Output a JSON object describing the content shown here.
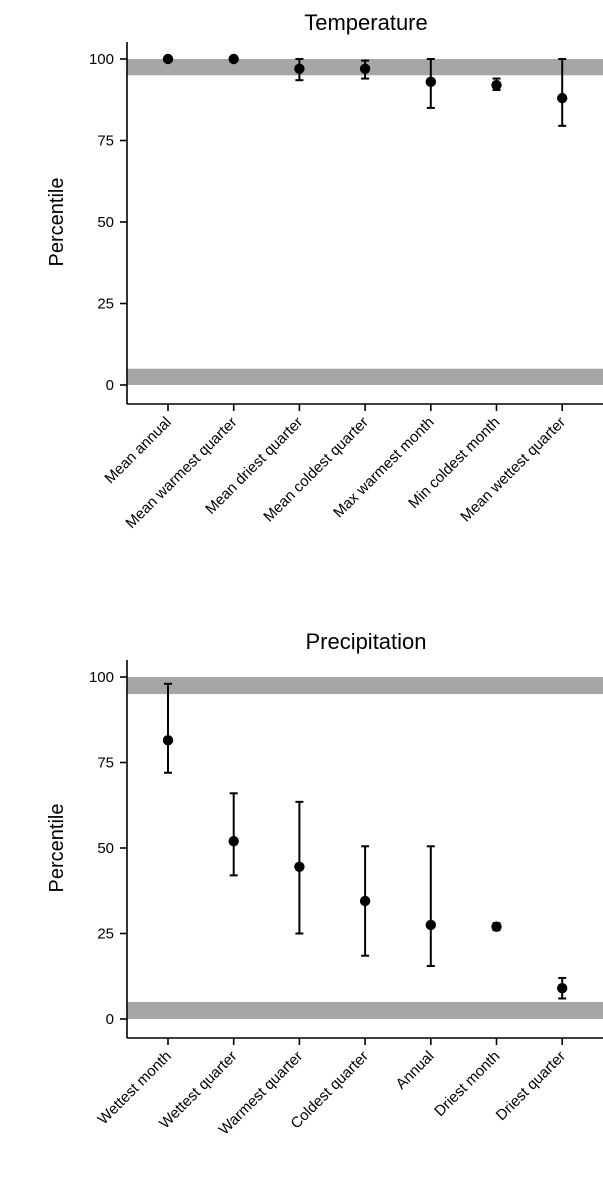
{
  "chart_data": [
    {
      "type": "scatter",
      "title": "Temperature",
      "ylabel": "Percentile",
      "xlabel": "",
      "ylim": [
        -5,
        105
      ],
      "yticks": [
        0,
        25,
        50,
        75,
        100
      ],
      "grid": false,
      "legend": "none",
      "reference_bands": [
        {
          "from": 95,
          "to": 100,
          "color": "#a6a6a6"
        },
        {
          "from": 0,
          "to": 5,
          "color": "#a6a6a6"
        }
      ],
      "categories": [
        "Mean annual",
        "Mean warmest quarter",
        "Mean driest quarter",
        "Mean coldest quarter",
        "Max warmest month",
        "Min coldest month",
        "Mean wettest quarter"
      ],
      "values": [
        100,
        100,
        97,
        97,
        93,
        92,
        88
      ],
      "lower": [
        100,
        100,
        93.5,
        94,
        85,
        90.5,
        79.5
      ],
      "upper": [
        100,
        100,
        100,
        99.5,
        100,
        94,
        100
      ]
    },
    {
      "type": "scatter",
      "title": "Precipitation",
      "ylabel": "Percentile",
      "xlabel": "",
      "ylim": [
        -5,
        105
      ],
      "yticks": [
        0,
        25,
        50,
        75,
        100
      ],
      "grid": false,
      "legend": "none",
      "reference_bands": [
        {
          "from": 95,
          "to": 100,
          "color": "#a6a6a6"
        },
        {
          "from": 0,
          "to": 5,
          "color": "#a6a6a6"
        }
      ],
      "categories": [
        "Wettest month",
        "Wettest quarter",
        "Warmest quarter",
        "Coldest quarter",
        "Annual",
        "Driest month",
        "Driest quarter"
      ],
      "values": [
        81.5,
        52,
        44.5,
        34.5,
        27.5,
        27,
        9
      ],
      "lower": [
        72,
        42,
        25,
        18.5,
        15.5,
        26,
        6
      ],
      "upper": [
        98,
        66,
        63.5,
        50.5,
        50.5,
        28,
        12
      ]
    }
  ]
}
